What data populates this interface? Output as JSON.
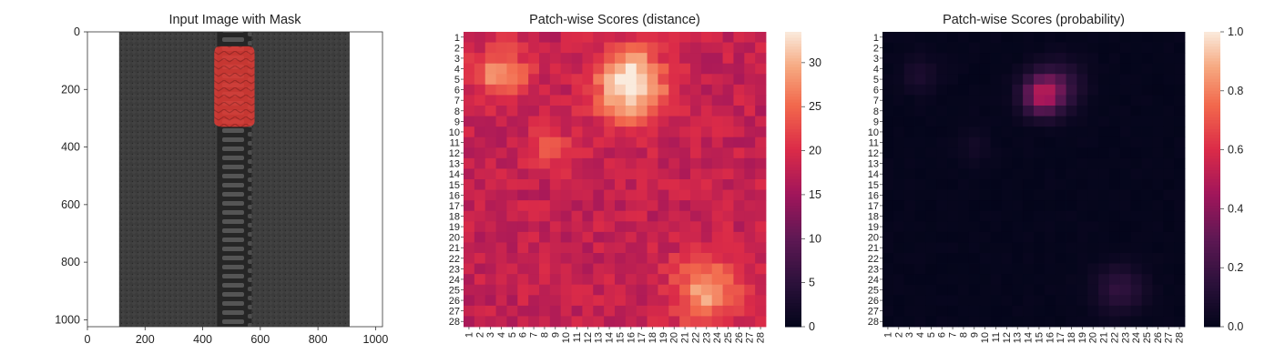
{
  "chart_data": [
    {
      "type": "image",
      "title": "Input Image with Mask",
      "xlim": [
        0,
        1024
      ],
      "ylim": [
        1024,
        0
      ],
      "xticks": [
        0,
        200,
        400,
        600,
        800,
        1000
      ],
      "yticks": [
        0,
        200,
        400,
        600,
        800,
        1000
      ],
      "image": {
        "content": "black zipper tape with metal zipper teeth running vertically",
        "background": "#ffffff",
        "tape_color": "#3a3a3a",
        "teeth_color": "#2a2a2a",
        "tape_x_range": [
          110,
          910
        ],
        "teeth_x_range": [
          450,
          570
        ]
      },
      "mask": {
        "color": "#e8403a",
        "opacity": 0.85,
        "x_range": [
          440,
          580
        ],
        "y_range": [
          50,
          330
        ]
      }
    },
    {
      "type": "heatmap",
      "title": "Patch-wise Scores (distance)",
      "x_tick_labels": [
        "1",
        "2",
        "3",
        "4",
        "5",
        "6",
        "7",
        "8",
        "9",
        "10",
        "11",
        "12",
        "13",
        "14",
        "15",
        "16",
        "17",
        "18",
        "19",
        "20",
        "21",
        "22",
        "23",
        "24",
        "25",
        "26",
        "27",
        "28"
      ],
      "y_tick_labels": [
        "1",
        "2",
        "3",
        "4",
        "5",
        "6",
        "7",
        "8",
        "9",
        "10",
        "11",
        "12",
        "13",
        "14",
        "15",
        "16",
        "17",
        "18",
        "19",
        "20",
        "21",
        "22",
        "23",
        "24",
        "25",
        "26",
        "27",
        "28"
      ],
      "colormap": "rocket",
      "colorbar": {
        "min": 0,
        "max": 33.5,
        "ticks": [
          0,
          5,
          10,
          15,
          20,
          25,
          30
        ]
      },
      "base_value": 18,
      "hotspots": [
        {
          "row": 6,
          "col": 16,
          "sigma": 2.3,
          "amplitude": 15
        },
        {
          "row": 4,
          "col": 16,
          "sigma": 1.5,
          "amplitude": 5
        },
        {
          "row": 4.5,
          "col": 4,
          "sigma": 1.7,
          "amplitude": 10
        },
        {
          "row": 11.5,
          "col": 8.5,
          "sigma": 1.4,
          "amplitude": 5
        },
        {
          "row": 25,
          "col": 23,
          "sigma": 2.2,
          "amplitude": 11
        }
      ]
    },
    {
      "type": "heatmap",
      "title": "Patch-wise Scores (probability)",
      "x_tick_labels": [
        "1",
        "2",
        "3",
        "4",
        "5",
        "6",
        "7",
        "8",
        "9",
        "10",
        "11",
        "12",
        "13",
        "14",
        "15",
        "16",
        "17",
        "18",
        "19",
        "20",
        "21",
        "22",
        "23",
        "24",
        "25",
        "26",
        "27",
        "28"
      ],
      "y_tick_labels": [
        "1",
        "2",
        "3",
        "4",
        "5",
        "6",
        "7",
        "8",
        "9",
        "10",
        "11",
        "12",
        "13",
        "14",
        "15",
        "16",
        "17",
        "18",
        "19",
        "20",
        "21",
        "22",
        "23",
        "24",
        "25",
        "26",
        "27",
        "28"
      ],
      "colormap": "rocket",
      "colorbar": {
        "min": 0,
        "max": 1.0,
        "ticks": [
          "0.0",
          "0.2",
          "0.4",
          "0.6",
          "0.8",
          "1.0"
        ]
      },
      "base_value": 0.01,
      "hotspots": [
        {
          "row": 6.5,
          "col": 15.3,
          "sigma": 1.3,
          "amplitude": 0.45
        },
        {
          "row": 5.5,
          "col": 17,
          "sigma": 1.6,
          "amplitude": 0.15
        },
        {
          "row": 4.5,
          "col": 4,
          "sigma": 1.2,
          "amplitude": 0.08
        },
        {
          "row": 11.5,
          "col": 9,
          "sigma": 1,
          "amplitude": 0.05
        },
        {
          "row": 25,
          "col": 22.5,
          "sigma": 1.6,
          "amplitude": 0.15
        }
      ]
    }
  ]
}
